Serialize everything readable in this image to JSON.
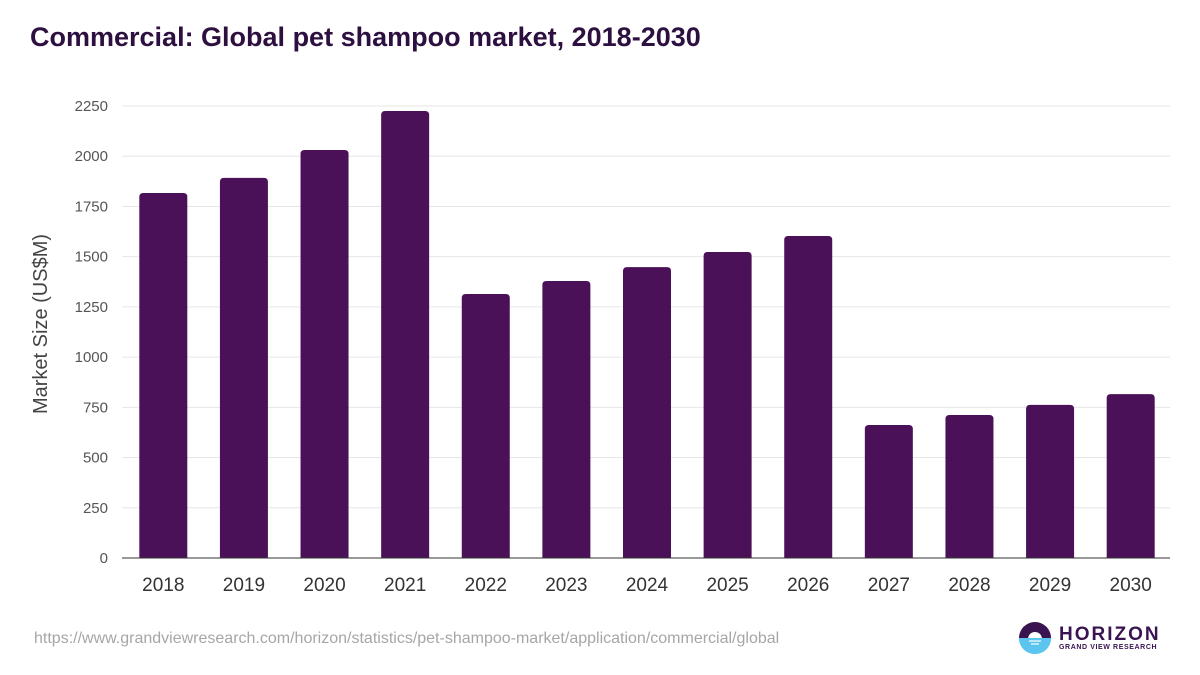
{
  "title": "Commercial: Global pet shampoo market, 2018-2030",
  "source_url": "https://www.grandviewresearch.com/horizon/statistics/pet-shampoo-market/application/commercial/global",
  "logo": {
    "main": "HORIZON",
    "sub": "GRAND VIEW RESEARCH",
    "icon": "horizon-logo-icon"
  },
  "colors": {
    "bar": "#4b1158",
    "title": "#2d1040",
    "grid": "#e6e6e6",
    "axis": "#333333"
  },
  "chart_data": {
    "type": "bar",
    "title": "Commercial: Global pet shampoo market, 2018-2030",
    "xlabel": "",
    "ylabel": "Market Size (US$M)",
    "categories": [
      "2018",
      "2019",
      "2020",
      "2021",
      "2022",
      "2023",
      "2024",
      "2025",
      "2026",
      "2027",
      "2028",
      "2029",
      "2030"
    ],
    "values": [
      1817,
      1892,
      2031,
      2225,
      1314,
      1379,
      1448,
      1523,
      1603,
      662,
      712,
      762,
      816
    ],
    "ylim": [
      0,
      2250
    ],
    "yticks": [
      0,
      250,
      500,
      750,
      1000,
      1250,
      1500,
      1750,
      2000,
      2250
    ],
    "grid": true,
    "legend": "none"
  }
}
